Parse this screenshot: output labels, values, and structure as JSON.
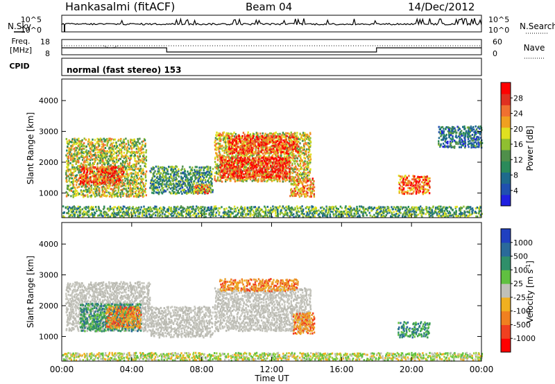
{
  "header": {
    "station": "Hankasalmi (fitACF)",
    "beam": "Beam 04",
    "date": "14/Dec/2012"
  },
  "nsky_panel": {
    "left_label": "N.Sky",
    "right_label": "N.Search",
    "y_ticks": [
      "10^5",
      "10^0"
    ]
  },
  "freq_panel": {
    "left_label_line1": "Freq.",
    "left_label_line2": "[MHz]",
    "left_ticks": [
      "18",
      "8"
    ],
    "right_label": "Nave",
    "right_ticks": [
      "60",
      "0"
    ]
  },
  "cpid_panel": {
    "label": "CPID",
    "mode": "normal (fast stereo) 153"
  },
  "chart_data": [
    {
      "type": "heatmap",
      "title": "",
      "ylabel": "Slant Range [km]",
      "yticks": [
        "4000",
        "3000",
        "2000",
        "1000"
      ],
      "ylim": [
        200,
        4700
      ],
      "xlim": [
        0,
        24
      ],
      "colorbar_label": "Power [dB]",
      "colorbar_ticks": [
        "28",
        "24",
        "20",
        "16",
        "12",
        "8",
        "4"
      ],
      "colorscale": [
        "#2020e0",
        "#2050b0",
        "#1e6a8c",
        "#2a8a5a",
        "#4f8f4a",
        "#8fbf30",
        "#e0e020",
        "#f0a020",
        "#f07030",
        "#e03020",
        "#ff0000"
      ],
      "echo_regions": [
        {
          "t0": 0.2,
          "t1": 4.8,
          "r0": 900,
          "r1": 2800,
          "level": 0.55
        },
        {
          "t0": 1.0,
          "t1": 3.5,
          "r0": 1300,
          "r1": 1900,
          "level": 0.85
        },
        {
          "t0": 5.0,
          "t1": 8.6,
          "r0": 1000,
          "r1": 1900,
          "level": 0.35
        },
        {
          "t0": 7.5,
          "t1": 8.4,
          "r0": 1000,
          "r1": 1300,
          "level": 0.75
        },
        {
          "t0": 8.7,
          "t1": 14.2,
          "r0": 1400,
          "r1": 3000,
          "level": 0.6
        },
        {
          "t0": 9.5,
          "t1": 13.5,
          "r0": 2300,
          "r1": 2900,
          "level": 0.85
        },
        {
          "t0": 9.0,
          "t1": 13.0,
          "r0": 1500,
          "r1": 2200,
          "level": 0.9
        },
        {
          "t0": 13.0,
          "t1": 14.4,
          "r0": 900,
          "r1": 1500,
          "level": 0.7
        },
        {
          "t0": 19.2,
          "t1": 21.0,
          "r0": 1000,
          "r1": 1600,
          "level": 0.8
        },
        {
          "t0": 21.5,
          "t1": 24.0,
          "r0": 2500,
          "r1": 3200,
          "level": 0.25
        },
        {
          "t0": 0.0,
          "t1": 24.0,
          "r0": 250,
          "r1": 600,
          "level": 0.4
        }
      ]
    },
    {
      "type": "heatmap",
      "title": "",
      "ylabel": "Slant Range [km]",
      "yticks": [
        "4000",
        "3000",
        "2000",
        "1000"
      ],
      "ylim": [
        200,
        4700
      ],
      "xlim": [
        0,
        24
      ],
      "xticks": [
        "00:00",
        "04:00",
        "08:00",
        "12:00",
        "16:00",
        "20:00",
        "00:00"
      ],
      "xlabel": "Time UT",
      "colorbar_label": "Velocity [m s-1]",
      "colorbar_label_parts": {
        "main": "Velocity [m s",
        "sup": "-1",
        "end": "]"
      },
      "colorbar_ticks": [
        "1000",
        "500",
        "100",
        "25",
        "-25",
        "-100",
        "-500",
        "-1000"
      ],
      "colorscale": [
        "#2040c0",
        "#2a6a9a",
        "#2f8f6a",
        "#60c040",
        "#c0c0b8",
        "#f0b020",
        "#f08020",
        "#f04020",
        "#ff0000"
      ],
      "echo_regions": [
        {
          "t0": 0.2,
          "t1": 5.0,
          "r0": 1200,
          "r1": 2800,
          "class": "ground"
        },
        {
          "t0": 1.0,
          "t1": 4.5,
          "r0": 1200,
          "r1": 2100,
          "class": "toward"
        },
        {
          "t0": 2.5,
          "t1": 4.5,
          "r0": 1300,
          "r1": 2000,
          "class": "away"
        },
        {
          "t0": 5.0,
          "t1": 8.6,
          "r0": 1000,
          "r1": 2000,
          "class": "ground"
        },
        {
          "t0": 8.7,
          "t1": 14.2,
          "r0": 1200,
          "r1": 2600,
          "class": "ground"
        },
        {
          "t0": 9.0,
          "t1": 13.5,
          "r0": 2500,
          "r1": 2900,
          "class": "away"
        },
        {
          "t0": 13.2,
          "t1": 14.4,
          "r0": 1100,
          "r1": 1800,
          "class": "away"
        },
        {
          "t0": 19.2,
          "t1": 21.0,
          "r0": 1000,
          "r1": 1500,
          "class": "toward"
        },
        {
          "t0": 0.0,
          "t1": 24.0,
          "r0": 250,
          "r1": 500,
          "class": "green"
        }
      ]
    }
  ]
}
